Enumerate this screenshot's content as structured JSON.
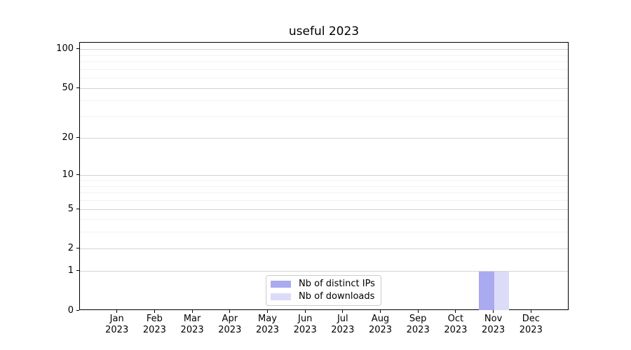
{
  "chart_data": {
    "type": "bar",
    "title": "useful 2023",
    "categories": [
      "Jan",
      "Feb",
      "Mar",
      "Apr",
      "May",
      "Jun",
      "Jul",
      "Aug",
      "Sep",
      "Oct",
      "Nov",
      "Dec"
    ],
    "category_sublabel": "2023",
    "series": [
      {
        "name": "Nb of distinct IPs",
        "color": "#aaaaf0",
        "values": [
          0,
          0,
          0,
          0,
          0,
          0,
          0,
          0,
          0,
          0,
          1,
          0
        ]
      },
      {
        "name": "Nb of downloads",
        "color": "#dcdcf8",
        "values": [
          0,
          0,
          0,
          0,
          0,
          0,
          0,
          0,
          0,
          0,
          1,
          0
        ]
      }
    ],
    "yscale": "log1p",
    "ylim": [
      0,
      113
    ],
    "yticks": [
      0,
      1,
      2,
      5,
      10,
      20,
      50,
      100
    ],
    "minor_yticks": [
      3,
      4,
      6,
      7,
      8,
      9,
      30,
      40,
      60,
      70,
      80,
      90
    ],
    "grid": true,
    "legend_position": "lower center",
    "colors": {
      "axis": "#000000",
      "major_grid": "#d4d4d4",
      "minor_grid": "#f2f2f2",
      "background": "#ffffff",
      "legend_border": "#cccccc",
      "text": "#000000"
    }
  }
}
